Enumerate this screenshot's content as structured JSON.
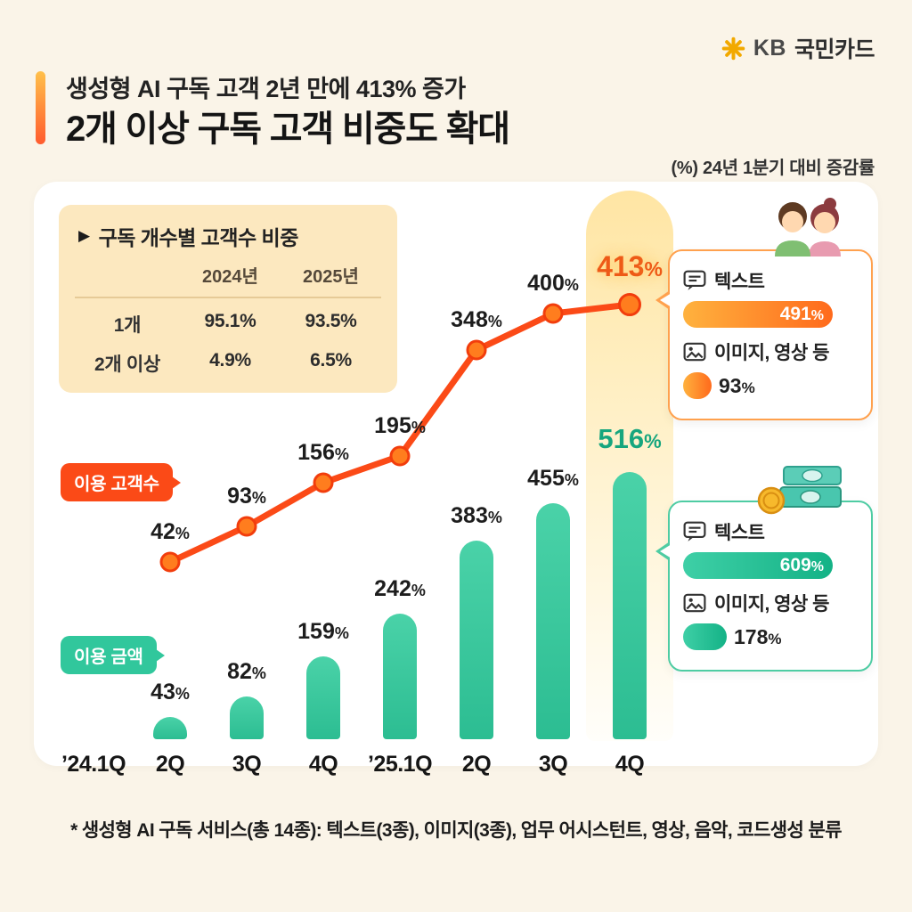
{
  "colors": {
    "accent_orange": "#FF5B2E",
    "accent_yellow": "#FFC04A",
    "line_orange": "#FB4A17",
    "bar_teal": "#31C79C",
    "bar_teal_light": "#4AD2A8",
    "bar_teal_dark": "#2CBD92",
    "label_orange": "#EE5A17",
    "label_teal": "#17A67E",
    "highlight_yellow": "#FFD76E",
    "background_cream": "#FAF4E8",
    "table_bg": "#FCE8BF"
  },
  "brand": {
    "kb": "KB",
    "name": "국민카드"
  },
  "header": {
    "title_line1": "생성형 AI 구독 고객 2년 만에 413% 증가",
    "title_line2": "2개 이상 구독 고객 비중도 확대",
    "note": "(%) 24년 1분기 대비 증감률"
  },
  "table": {
    "arrow": "▶",
    "title": "구독 개수별 고객수 비중",
    "columns": [
      "2024년",
      "2025년"
    ],
    "rows": [
      {
        "label": "1개",
        "v2024": "95.1%",
        "v2025": "93.5%"
      },
      {
        "label": "2개 이상",
        "v2024": "4.9%",
        "v2025": "6.5%"
      }
    ]
  },
  "chart_data": {
    "type": "combo (line + bar)",
    "categories": [
      "’24.1Q",
      "2Q",
      "3Q",
      "4Q",
      "’25.1Q",
      "2Q",
      "3Q",
      "4Q"
    ],
    "series": [
      {
        "name": "이용 고객수",
        "type": "line",
        "color": "#FB4A17",
        "values": [
          null,
          42,
          93,
          156,
          195,
          348,
          400,
          413
        ]
      },
      {
        "name": "이용 금액",
        "type": "bar",
        "color": "#31C79C",
        "values": [
          null,
          43,
          82,
          159,
          242,
          383,
          455,
          516
        ]
      }
    ],
    "unit": "%",
    "title": "구독 개수별 고객수 비중 / 분기별 증감률",
    "xlabel": "",
    "ylabel": "(%) 24년 1분기 대비 증감률",
    "highlight_category_index": 7,
    "legend_position": "left speech bubbles",
    "grid": false
  },
  "callouts": {
    "customers": {
      "border_color": "#FFA14E",
      "items": [
        {
          "label": "텍스트",
          "value": "491",
          "unit": "%"
        },
        {
          "label": "이미지, 영상 등",
          "value": "93",
          "unit": "%"
        }
      ]
    },
    "amount": {
      "border_color": "#4ECCA3",
      "items": [
        {
          "label": "텍스트",
          "value": "609",
          "unit": "%"
        },
        {
          "label": "이미지, 영상 등",
          "value": "178",
          "unit": "%"
        }
      ]
    }
  },
  "footer": {
    "note": "* 생성형 AI 구독 서비스(총 14종): 텍스트(3종), 이미지(3종), 업무 어시스턴트, 영상, 음악, 코드생성 분류"
  }
}
